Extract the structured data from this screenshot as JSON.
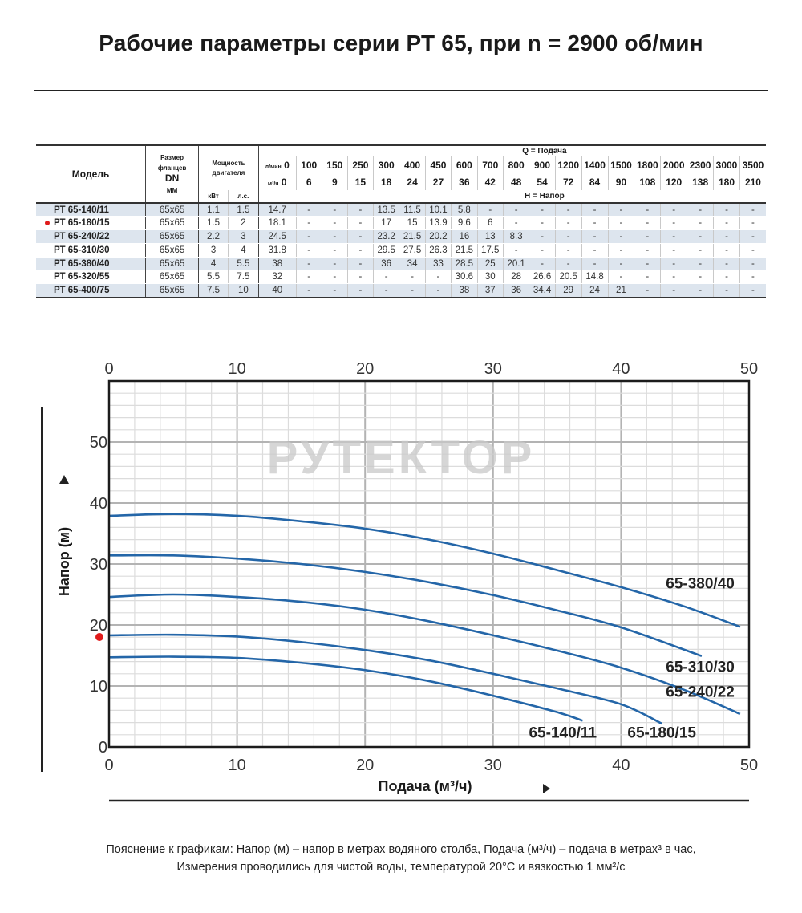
{
  "title": "Рабочие параметры серии РТ 65, при n = 2900 об/мин",
  "table": {
    "headers": {
      "model": "Модель",
      "flange": [
        "Размер",
        "фланцев",
        "DN",
        "ММ"
      ],
      "power": [
        "Мощность",
        "двигателя"
      ],
      "kw": "кВт",
      "hp": "л.с.",
      "q_label": "Q = Подача",
      "h_label": "H = Напор",
      "lmin_label": "л/мин",
      "m3h_label": "м³/ч"
    },
    "flow_lmin": [
      "0",
      "100",
      "150",
      "250",
      "300",
      "400",
      "450",
      "600",
      "700",
      "800",
      "900",
      "1200",
      "1400",
      "1500",
      "1800",
      "2000",
      "2300",
      "3000",
      "3500"
    ],
    "flow_m3h": [
      "0",
      "6",
      "9",
      "15",
      "18",
      "24",
      "27",
      "36",
      "42",
      "48",
      "54",
      "72",
      "84",
      "90",
      "108",
      "120",
      "138",
      "180",
      "210"
    ],
    "rows": [
      {
        "model": "РТ 65-140/11",
        "dn": "65x65",
        "kw": "1.1",
        "hp": "1.5",
        "marked": false,
        "head": [
          "14.7",
          "-",
          "-",
          "-",
          "13.5",
          "11.5",
          "10.1",
          "5.8",
          "-",
          "-",
          "-",
          "-",
          "-",
          "-",
          "-",
          "-",
          "-",
          "-",
          "-"
        ]
      },
      {
        "model": "РТ 65-180/15",
        "dn": "65x65",
        "kw": "1.5",
        "hp": "2",
        "marked": true,
        "head": [
          "18.1",
          "-",
          "-",
          "-",
          "17",
          "15",
          "13.9",
          "9.6",
          "6",
          "-",
          "-",
          "-",
          "-",
          "-",
          "-",
          "-",
          "-",
          "-",
          "-"
        ]
      },
      {
        "model": "РТ 65-240/22",
        "dn": "65x65",
        "kw": "2.2",
        "hp": "3",
        "marked": false,
        "head": [
          "24.5",
          "-",
          "-",
          "-",
          "23.2",
          "21.5",
          "20.2",
          "16",
          "13",
          "8.3",
          "-",
          "-",
          "-",
          "-",
          "-",
          "-",
          "-",
          "-",
          "-"
        ]
      },
      {
        "model": "РТ 65-310/30",
        "dn": "65x65",
        "kw": "3",
        "hp": "4",
        "marked": false,
        "head": [
          "31.8",
          "-",
          "-",
          "-",
          "29.5",
          "27.5",
          "26.3",
          "21.5",
          "17.5",
          "-",
          "-",
          "-",
          "-",
          "-",
          "-",
          "-",
          "-",
          "-",
          "-"
        ]
      },
      {
        "model": "РТ 65-380/40",
        "dn": "65x65",
        "kw": "4",
        "hp": "5.5",
        "marked": false,
        "head": [
          "38",
          "-",
          "-",
          "-",
          "36",
          "34",
          "33",
          "28.5",
          "25",
          "20.1",
          "-",
          "-",
          "-",
          "-",
          "-",
          "-",
          "-",
          "-",
          "-"
        ]
      },
      {
        "model": "РТ 65-320/55",
        "dn": "65x65",
        "kw": "5.5",
        "hp": "7.5",
        "marked": false,
        "head": [
          "32",
          "-",
          "-",
          "-",
          "-",
          "-",
          "-",
          "30.6",
          "30",
          "28",
          "26.6",
          "20.5",
          "14.8",
          "-",
          "-",
          "-",
          "-",
          "-",
          "-"
        ]
      },
      {
        "model": "РТ 65-400/75",
        "dn": "65x65",
        "kw": "7.5",
        "hp": "10",
        "marked": false,
        "head": [
          "40",
          "-",
          "-",
          "-",
          "-",
          "-",
          "-",
          "38",
          "37",
          "36",
          "34.4",
          "29",
          "24",
          "21",
          "-",
          "-",
          "-",
          "-",
          "-"
        ]
      }
    ]
  },
  "chart_data": {
    "type": "line",
    "title": "",
    "xlabel": "Подача (м³/ч)",
    "ylabel": "Напор (м)",
    "xlim": [
      0,
      50
    ],
    "ylim": [
      0,
      60
    ],
    "x_ticks": [
      "0",
      "10",
      "20",
      "30",
      "40",
      "50"
    ],
    "y_ticks": [
      "0",
      "10",
      "20",
      "30",
      "40",
      "50"
    ],
    "grid": true,
    "watermark": "РУТЕКТОР",
    "line_color": "#2466a8",
    "marker_color": "#e01b1b",
    "series": [
      {
        "name": "65-380/40",
        "label_pos": [
          43.5,
          26
        ],
        "x": [
          0,
          5,
          10,
          15,
          20,
          25,
          30,
          35,
          40,
          45,
          49.3
        ],
        "y": [
          37.9,
          38.2,
          37.9,
          37.0,
          35.8,
          34.0,
          31.7,
          29.0,
          26.2,
          23.0,
          19.7
        ]
      },
      {
        "name": "65-310/30",
        "label_pos": [
          43.5,
          12.3
        ],
        "x": [
          0,
          5,
          10,
          15,
          20,
          25,
          30,
          35,
          40,
          46.3
        ],
        "y": [
          31.4,
          31.4,
          30.9,
          30.0,
          28.7,
          27.0,
          24.9,
          22.4,
          19.6,
          14.9
        ]
      },
      {
        "name": "65-240/22",
        "label_pos": [
          43.5,
          8.2
        ],
        "x": [
          0,
          5,
          10,
          15,
          20,
          25,
          30,
          35,
          40,
          45,
          49.3
        ],
        "y": [
          24.6,
          25.0,
          24.6,
          23.8,
          22.5,
          20.6,
          18.3,
          15.8,
          13.0,
          9.3,
          5.4
        ]
      },
      {
        "name": "65-180/15",
        "label_pos": [
          40.5,
          1.5
        ],
        "x": [
          0,
          5,
          10,
          15,
          20,
          25,
          30,
          35,
          40,
          43.2
        ],
        "y": [
          18.3,
          18.4,
          18.1,
          17.2,
          15.9,
          14.2,
          12.0,
          9.6,
          7.0,
          3.8
        ]
      },
      {
        "name": "65-140/11",
        "label_pos": [
          32.8,
          1.5
        ],
        "x": [
          0,
          5,
          10,
          15,
          20,
          25,
          30,
          35,
          37
        ],
        "y": [
          14.7,
          14.8,
          14.6,
          13.8,
          12.6,
          10.8,
          8.4,
          5.7,
          4.3
        ]
      }
    ]
  },
  "caption": {
    "line1": "Пояснение к графикам: Напор (м) – напор в метрах водяного столба, Подача (м³/ч) – подача в метрах³ в час,",
    "line2": "Измерения проводились для чистой воды, температурой 20°С и вязкостью 1 мм²/с"
  }
}
